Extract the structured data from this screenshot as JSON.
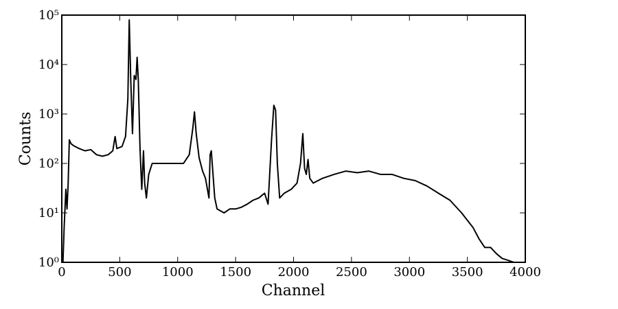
{
  "chart_data": {
    "type": "line",
    "x_label": "Channel",
    "y_label": "Counts",
    "yscale": "log",
    "color": "#000000",
    "x": [
      10,
      20,
      35,
      45,
      55,
      65,
      80,
      100,
      150,
      200,
      250,
      300,
      350,
      400,
      440,
      460,
      475,
      520,
      550,
      570,
      582,
      595,
      610,
      625,
      640,
      650,
      660,
      675,
      690,
      705,
      715,
      730,
      750,
      780,
      850,
      950,
      1050,
      1100,
      1130,
      1145,
      1160,
      1185,
      1215,
      1240,
      1270,
      1280,
      1290,
      1305,
      1320,
      1340,
      1400,
      1450,
      1500,
      1550,
      1600,
      1650,
      1700,
      1750,
      1780,
      1790,
      1810,
      1830,
      1845,
      1860,
      1880,
      1920,
      1980,
      2030,
      2060,
      2080,
      2095,
      2110,
      2125,
      2140,
      2170,
      2250,
      2350,
      2450,
      2550,
      2650,
      2750,
      2850,
      2950,
      3050,
      3150,
      3250,
      3350,
      3450,
      3550,
      3600,
      3650,
      3700,
      3750,
      3800,
      3850,
      3900,
      3950
    ],
    "values": [
      1,
      5,
      30,
      12,
      40,
      300,
      250,
      230,
      200,
      180,
      190,
      150,
      140,
      150,
      180,
      350,
      200,
      220,
      350,
      2000,
      80000,
      5000,
      400,
      6000,
      5000,
      14000,
      5000,
      200,
      30,
      180,
      40,
      20,
      60,
      100,
      100,
      100,
      100,
      150,
      500,
      1100,
      400,
      130,
      70,
      50,
      20,
      150,
      180,
      60,
      20,
      12,
      10,
      12,
      12,
      13,
      15,
      18,
      20,
      25,
      15,
      40,
      300,
      1500,
      1200,
      100,
      20,
      25,
      30,
      40,
      100,
      400,
      80,
      60,
      120,
      50,
      40,
      50,
      60,
      70,
      65,
      70,
      60,
      60,
      50,
      45,
      35,
      25,
      18,
      10,
      5,
      3,
      2,
      2,
      1.5,
      1.2,
      1.1,
      1,
      1
    ],
    "xlim": [
      0,
      4000
    ],
    "xticks": [
      0,
      500,
      1000,
      1500,
      2000,
      2500,
      3000,
      3500,
      4000
    ],
    "ylim": [
      1,
      100000
    ],
    "yticks": [
      {
        "value": 1,
        "label": "10⁰"
      },
      {
        "value": 10,
        "label": "10¹"
      },
      {
        "value": 100,
        "label": "10²"
      },
      {
        "value": 1000,
        "label": "10³"
      },
      {
        "value": 10000,
        "label": "10⁴"
      },
      {
        "value": 100000,
        "label": "10⁵"
      }
    ]
  }
}
